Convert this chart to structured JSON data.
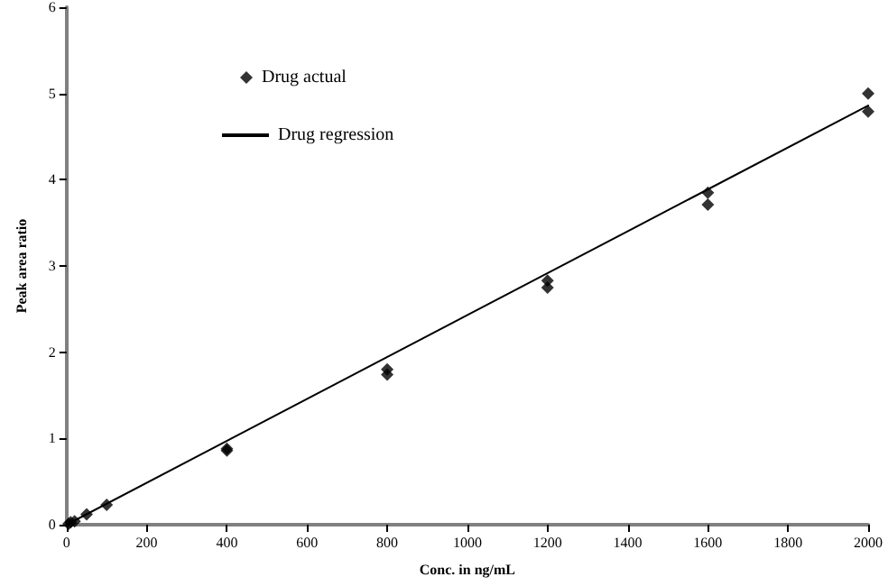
{
  "chart_data": {
    "type": "scatter",
    "xlabel": "Conc. in ng/mL",
    "ylabel": "Peak area ratio",
    "xlim": [
      0,
      2000
    ],
    "xticks": [
      0,
      200,
      400,
      600,
      800,
      1000,
      1200,
      1400,
      1600,
      1800,
      2000
    ],
    "ylim": [
      0,
      6
    ],
    "yticks": [
      0,
      1,
      2,
      3,
      4,
      5,
      6
    ],
    "grid": false,
    "legend": "top left",
    "series": [
      {
        "name": "Drug actual",
        "color": "#000000",
        "marker": "diamond",
        "x": [
          5,
          10,
          20,
          50,
          100,
          400,
          400,
          800,
          800,
          1200,
          1200,
          1600,
          1600,
          2000,
          2000
        ],
        "values": [
          0.01,
          0.03,
          0.04,
          0.12,
          0.23,
          0.86,
          0.88,
          1.74,
          1.8,
          2.75,
          2.83,
          3.71,
          3.85,
          4.79,
          5.0
        ]
      },
      {
        "name": "Drug regression",
        "type": "line",
        "color": "#000000",
        "marker": "none",
        "line_style": "solid",
        "x": [
          0,
          2000
        ],
        "values": [
          0,
          4.86
        ]
      }
    ]
  }
}
